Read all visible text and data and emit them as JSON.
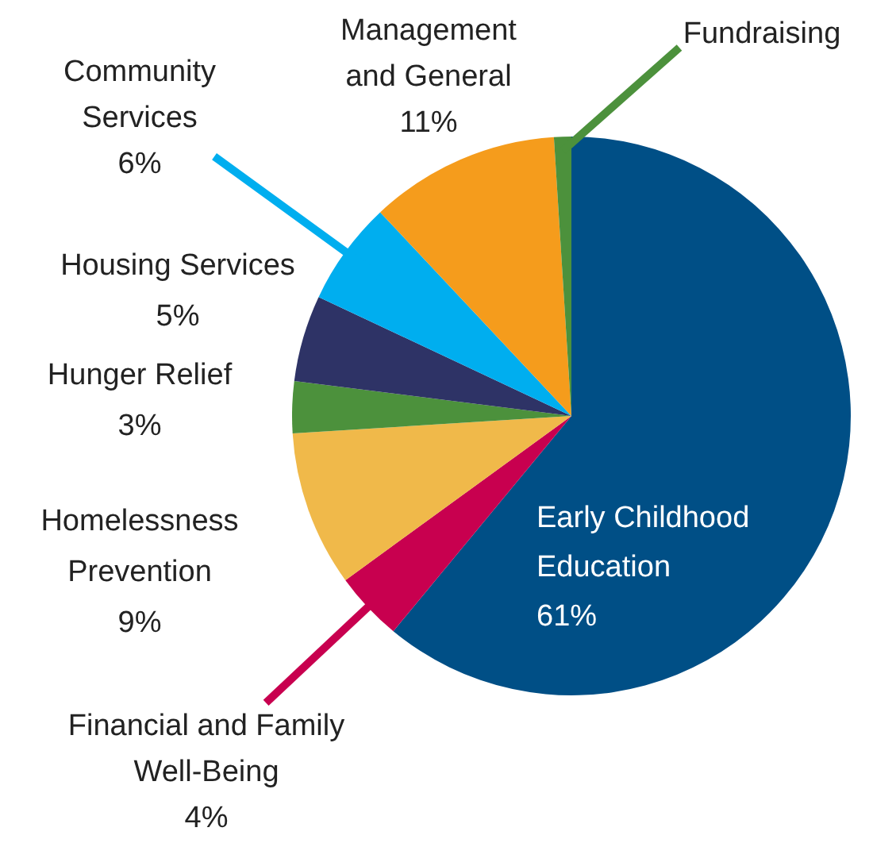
{
  "chart_data": {
    "type": "pie",
    "categories": [
      "Early Childhood Education",
      "Financial and Family Well-Being",
      "Homelessness Prevention",
      "Hunger Relief",
      "Housing Services",
      "Community Services",
      "Management and General",
      "Fundraising"
    ],
    "values": [
      61,
      4,
      9,
      3,
      5,
      6,
      11,
      1
    ],
    "colors": [
      "#004f86",
      "#c8004f",
      "#f0b94a",
      "#4c913c",
      "#2e3366",
      "#00aeef",
      "#f59c1c",
      "#4c913c"
    ],
    "value_labels": [
      "61%",
      "4%",
      "9%",
      "3%",
      "5%",
      "6%",
      "11%",
      null
    ]
  }
}
